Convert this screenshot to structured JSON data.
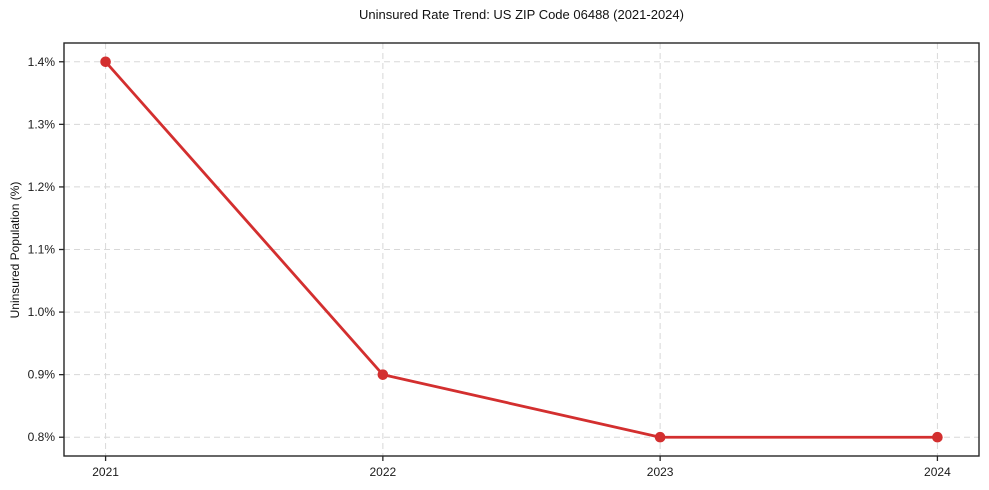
{
  "chart_data": {
    "type": "line",
    "title": "Uninsured Rate Trend: US ZIP Code 06488 (2021-2024)",
    "xlabel": "",
    "ylabel": "Uninsured Population (%)",
    "x": [
      2021,
      2022,
      2023,
      2024
    ],
    "values": [
      1.4,
      0.9,
      0.8,
      0.8
    ],
    "x_ticks": [
      {
        "value": 2021,
        "label": "2021"
      },
      {
        "value": 2022,
        "label": "2022"
      },
      {
        "value": 2023,
        "label": "2023"
      },
      {
        "value": 2024,
        "label": "2024"
      }
    ],
    "y_ticks": [
      {
        "value": 0.8,
        "label": "0.8%"
      },
      {
        "value": 0.9,
        "label": "0.9%"
      },
      {
        "value": 1.0,
        "label": "1.0%"
      },
      {
        "value": 1.1,
        "label": "1.1%"
      },
      {
        "value": 1.2,
        "label": "1.2%"
      },
      {
        "value": 1.3,
        "label": "1.3%"
      },
      {
        "value": 1.4,
        "label": "1.4%"
      }
    ],
    "xlim": [
      2020.85,
      2024.15
    ],
    "ylim": [
      0.77,
      1.43
    ],
    "grid": {
      "style": "dashed",
      "color": "#d8d8d8"
    },
    "legend": "none",
    "marker": "circle",
    "colors": {
      "line": "#d32f2f",
      "marker": "#d32f2f",
      "axis": "#262626",
      "text": "#1a1a1a",
      "background": "#ffffff"
    }
  }
}
